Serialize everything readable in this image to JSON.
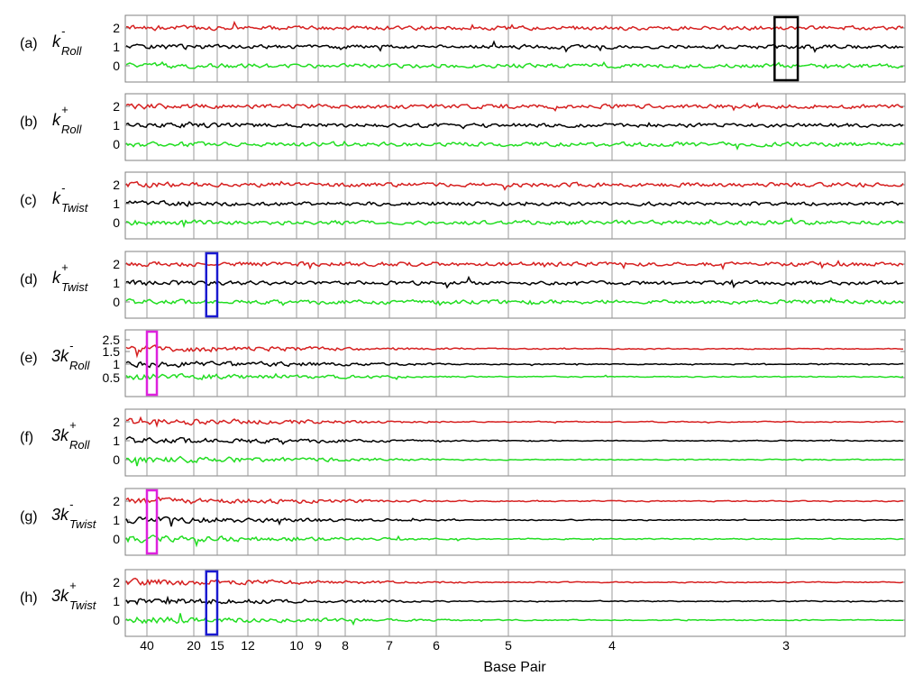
{
  "chart_data": {
    "type": "line",
    "xlabel": "Base Pair",
    "x_ticks": [
      "40",
      "20",
      "15",
      "12",
      "10",
      "9",
      "8",
      "7",
      "6",
      "5",
      "4",
      "3"
    ],
    "x_scale": "reciprocal",
    "series_colors": {
      "upper": "#d62020",
      "middle": "#000000",
      "lower": "#22dd22"
    },
    "panels": [
      {
        "tag": "(a)",
        "prefix": "",
        "sup": "-",
        "sub": "Roll",
        "yticks": [
          "2",
          "1",
          "0"
        ],
        "highlight": {
          "color": "#000000",
          "from": "3.05",
          "to": "2.95"
        }
      },
      {
        "tag": "(b)",
        "prefix": "",
        "sup": "+",
        "sub": "Roll",
        "yticks": [
          "2",
          "1",
          "0"
        ],
        "highlight": null
      },
      {
        "tag": "(c)",
        "prefix": "",
        "sup": "-",
        "sub": "Twist",
        "yticks": [
          "2",
          "1",
          "0"
        ],
        "highlight": null
      },
      {
        "tag": "(d)",
        "prefix": "",
        "sup": "+",
        "sub": "Twist",
        "yticks": [
          "2",
          "1",
          "0"
        ],
        "highlight": {
          "color": "#1a1ad0",
          "from": "17",
          "to": "15"
        }
      },
      {
        "tag": "(e)",
        "prefix": "3",
        "sup": "-",
        "sub": "Roll",
        "yticks": [
          "2.5",
          "1.5",
          "1",
          "0.5"
        ],
        "highlight": {
          "color": "#dd22dd",
          "from": "40",
          "to": "33"
        }
      },
      {
        "tag": "(f)",
        "prefix": "3",
        "sup": "+",
        "sub": "Roll",
        "yticks": [
          "2",
          "1",
          "0"
        ],
        "highlight": null
      },
      {
        "tag": "(g)",
        "prefix": "3",
        "sup": "-",
        "sub": "Twist",
        "yticks": [
          "2",
          "1",
          "0"
        ],
        "highlight": {
          "color": "#dd22dd",
          "from": "40",
          "to": "33"
        }
      },
      {
        "tag": "(h)",
        "prefix": "3",
        "sup": "+",
        "sub": "Twist",
        "yticks": [
          "2",
          "1",
          "0"
        ],
        "highlight": {
          "color": "#1a1ad0",
          "from": "17",
          "to": "15"
        }
      }
    ]
  }
}
